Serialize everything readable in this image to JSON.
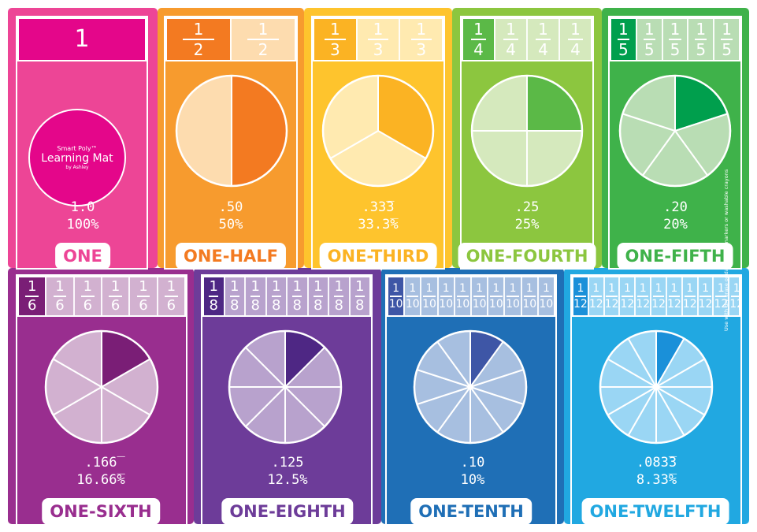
{
  "note": "Use with dry erase or damp wipe markers or washable crayons",
  "logo": {
    "line1": "Smart Poly™",
    "line2": "Learning Mat",
    "line3": "by Ashley"
  },
  "cards": [
    {
      "den": 1,
      "decimal": "1.0",
      "percent": "100%",
      "name": "ONE",
      "bg": "#ed4596",
      "light": "#f7a6cc",
      "dark": "#e4068a",
      "nameColor": "#ed4596"
    },
    {
      "den": 2,
      "decimal": ".50",
      "percent": "50%",
      "name": "ONE-HALF",
      "bg": "#f79b2e",
      "light": "#fddcaf",
      "dark": "#f37a21",
      "nameColor": "#f37a21"
    },
    {
      "den": 3,
      "decimal": ".33̅3",
      "percent": "33.3̅%",
      "name": "ONE-THIRD",
      "bg": "#fec42d",
      "light": "#ffeab0",
      "dark": "#fbb323",
      "nameColor": "#fbb323"
    },
    {
      "den": 4,
      "decimal": ".25",
      "percent": "25%",
      "name": "ONE-FOURTH",
      "bg": "#8cc63f",
      "light": "#d5e9bd",
      "dark": "#5bb947",
      "nameColor": "#8cc63f"
    },
    {
      "den": 5,
      "decimal": ".20",
      "percent": "20%",
      "name": "ONE-FIFTH",
      "bg": "#3fb24a",
      "light": "#b9ddb4",
      "dark": "#009f4d",
      "nameColor": "#3fb24a"
    },
    {
      "den": 6,
      "decimal": ".166̅",
      "percent": "16.66̅%",
      "name": "ONE-SIXTH",
      "bg": "#992e8f",
      "light": "#d2b1d0",
      "dark": "#7a1e76",
      "nameColor": "#992e8f"
    },
    {
      "den": 8,
      "decimal": ".125",
      "percent": "12.5%",
      "name": "ONE-EIGHTH",
      "bg": "#6d3c99",
      "light": "#b8a2cd",
      "dark": "#4e2784",
      "nameColor": "#6d3c99"
    },
    {
      "den": 10,
      "decimal": ".10",
      "percent": "10%",
      "name": "ONE-TENTH",
      "bg": "#1f6fb6",
      "light": "#a7bfe0",
      "dark": "#3e56a6",
      "nameColor": "#1f6fb6"
    },
    {
      "den": 12,
      "decimal": ".083̅3",
      "percent": "8.33̅%",
      "name": "ONE-TWELFTH",
      "bg": "#21a8e1",
      "light": "#9ad6f4",
      "dark": "#1a90d9",
      "nameColor": "#21a8e1"
    }
  ]
}
